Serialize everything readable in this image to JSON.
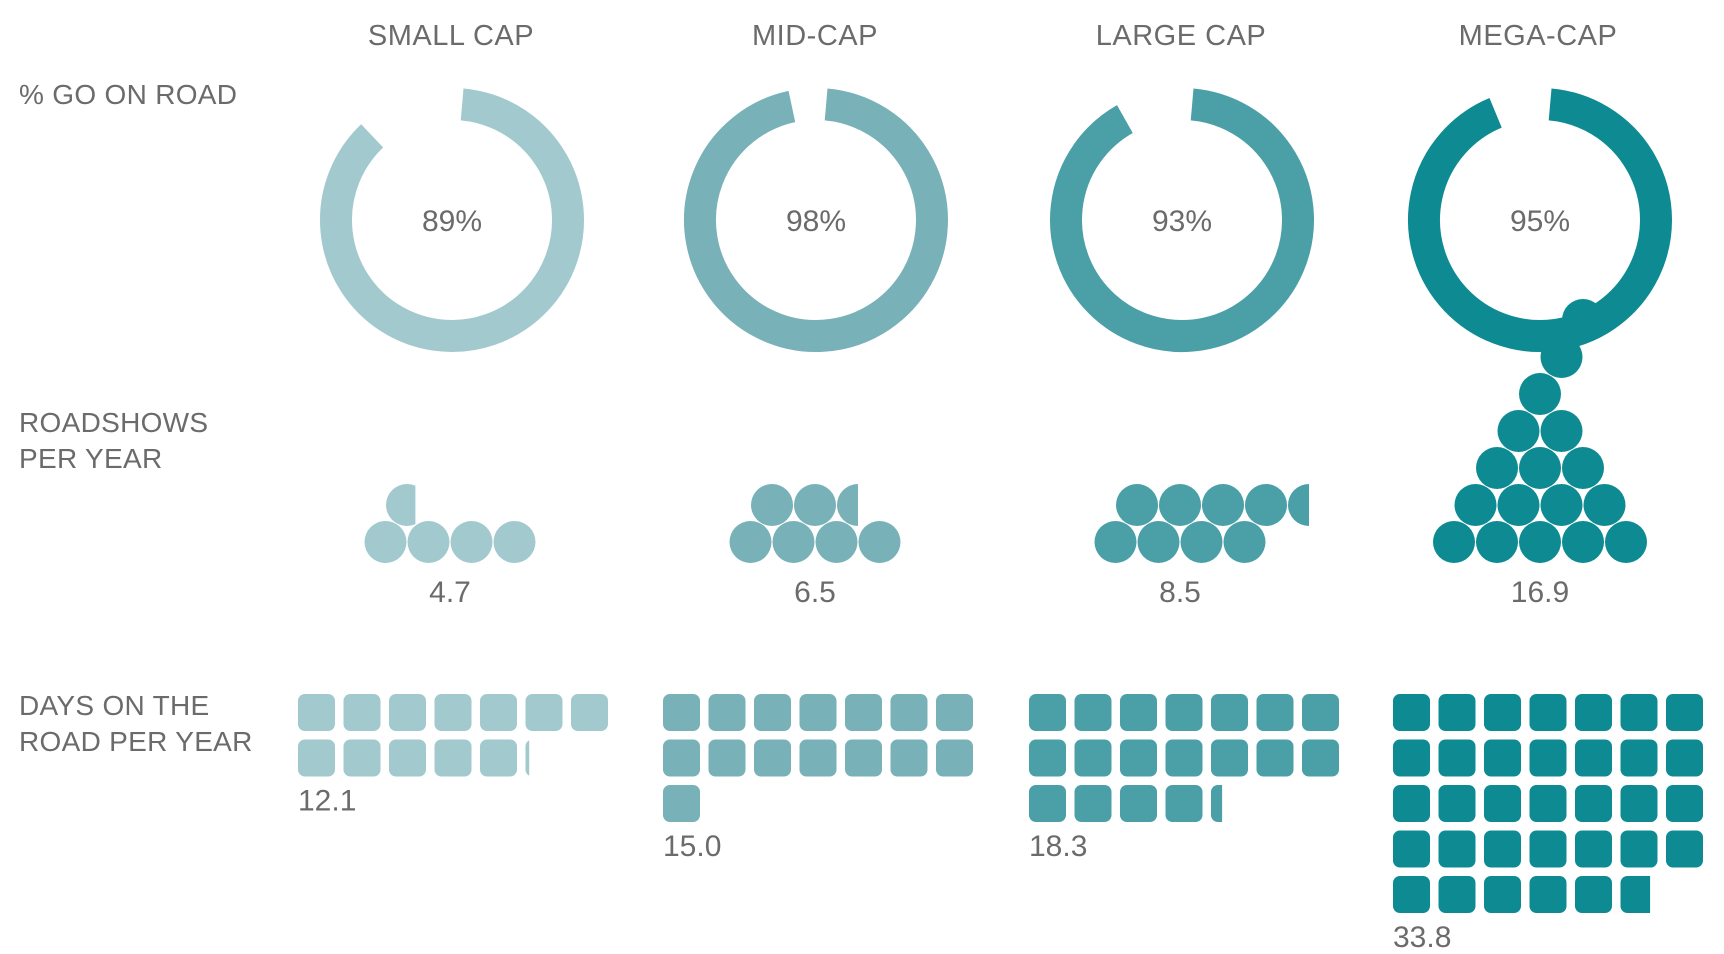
{
  "colors": {
    "small_cap": "#a2c9ce",
    "mid_cap": "#79b1b9",
    "large_cap": "#4ba0a7",
    "mega_cap": "#0e8b92",
    "text": "#6b6b6b"
  },
  "row_labels": {
    "go_on_road": [
      "% GO ON ROAD"
    ],
    "roadshows": [
      "ROADSHOWS",
      "PER YEAR"
    ],
    "days": [
      "DAYS ON THE",
      "ROAD PER YEAR"
    ]
  },
  "chart_data": {
    "type": "infographic",
    "categories": [
      "SMALL CAP",
      "MID-CAP",
      "LARGE CAP",
      "MEGA-CAP"
    ],
    "series": [
      {
        "name": "% GO ON ROAD",
        "type": "donut",
        "values": [
          89,
          98,
          93,
          95
        ],
        "value_labels": [
          "89%",
          "98%",
          "93%",
          "95%"
        ]
      },
      {
        "name": "ROADSHOWS PER YEAR",
        "type": "pictogram-circles",
        "values": [
          4.7,
          6.5,
          8.5,
          16.9
        ],
        "value_labels": [
          "4.7",
          "6.5",
          "8.5",
          "16.9"
        ]
      },
      {
        "name": "DAYS ON THE ROAD PER YEAR",
        "type": "pictogram-squares",
        "values": [
          12.1,
          15.0,
          18.3,
          33.8
        ],
        "value_labels": [
          "12.1",
          "15.0",
          "18.3",
          "33.8"
        ]
      }
    ]
  }
}
